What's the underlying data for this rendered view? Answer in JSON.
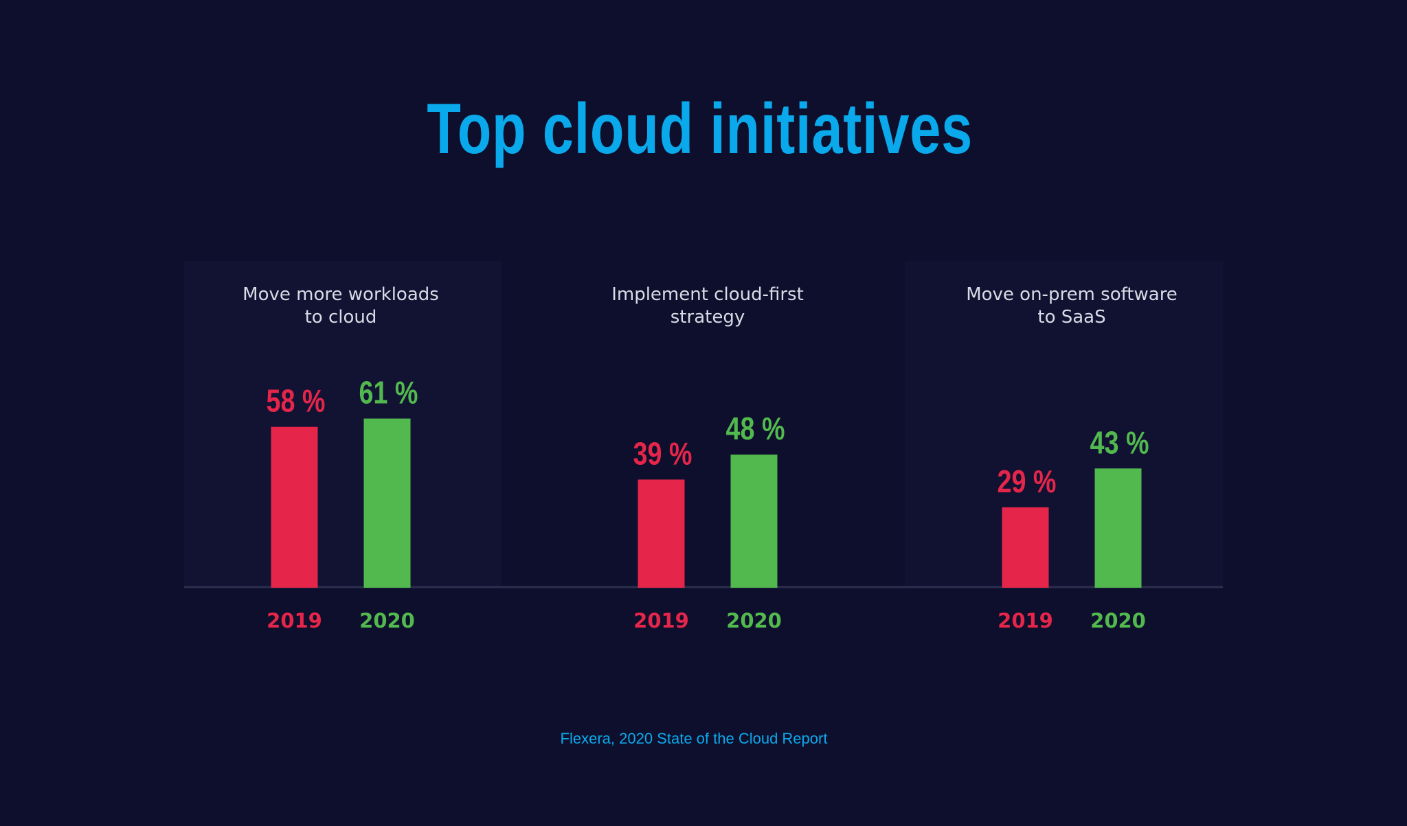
{
  "title": "Top cloud initiatives",
  "source": "Flexera, 2020 State of the Cloud Report",
  "colors": {
    "background": "#0e0f2c",
    "title": "#0aa9ec",
    "series_2019": "#e5264a",
    "series_2020": "#52b94e",
    "panel_label": "#d9dbe6",
    "baseline": "#2c2e4d"
  },
  "chart_data": {
    "type": "bar",
    "title": "Top cloud initiatives",
    "categories": [
      "Move more workloads to cloud",
      "Implement cloud-first strategy",
      "Move on-prem software to SaaS"
    ],
    "category_lines": [
      [
        "Move more workloads",
        "to cloud"
      ],
      [
        "Implement cloud-first",
        "strategy"
      ],
      [
        "Move on-prem software",
        "to SaaS"
      ]
    ],
    "series": [
      {
        "name": "2019",
        "values": [
          58,
          39,
          29
        ],
        "value_labels": [
          "58 %",
          "39 %",
          "29 %"
        ]
      },
      {
        "name": "2020",
        "values": [
          61,
          48,
          43
        ],
        "value_labels": [
          "61 %",
          "48 %",
          "43 %"
        ]
      }
    ],
    "unit": "%",
    "ylim": [
      0,
      100
    ],
    "grid": false,
    "legend": "none"
  }
}
